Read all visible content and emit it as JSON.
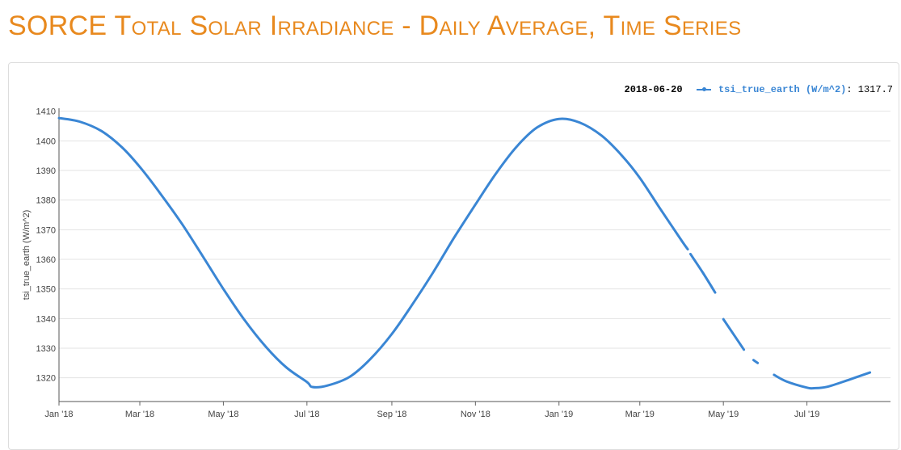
{
  "page": {
    "title": "SORCE Total Solar Irradiance - Daily Average, Time Series",
    "accent_color": "#e8891e"
  },
  "legend": {
    "date": "2018-06-20",
    "series_label": "tsi_true_earth (W/m^2)",
    "value": "1317.7"
  },
  "chart_data": {
    "type": "line",
    "title": "SORCE Total Solar Irradiance - Daily Average, Time Series",
    "xlabel": "",
    "ylabel": "tsi_true_earth (W/m^2)",
    "ylim": [
      1312,
      1411
    ],
    "xlim": [
      "2018-01-01",
      "2019-08-31"
    ],
    "y_ticks": [
      1320,
      1330,
      1340,
      1350,
      1360,
      1370,
      1380,
      1390,
      1400,
      1410
    ],
    "x_ticks": [
      {
        "date": "2018-01-01",
        "label": "Jan '18"
      },
      {
        "date": "2018-03-01",
        "label": "Mar '18"
      },
      {
        "date": "2018-05-01",
        "label": "May '18"
      },
      {
        "date": "2018-07-01",
        "label": "Jul '18"
      },
      {
        "date": "2018-09-01",
        "label": "Sep '18"
      },
      {
        "date": "2018-11-01",
        "label": "Nov '18"
      },
      {
        "date": "2019-01-01",
        "label": "Jan '19"
      },
      {
        "date": "2019-03-01",
        "label": "Mar '19"
      },
      {
        "date": "2019-05-01",
        "label": "May '19"
      },
      {
        "date": "2019-07-01",
        "label": "Jul '19"
      }
    ],
    "grid": true,
    "legend_position": "top-right",
    "series": [
      {
        "name": "tsi_true_earth (W/m^2)",
        "color": "#3a86d4",
        "points": [
          [
            "2018-01-01",
            1407.7
          ],
          [
            "2018-01-16",
            1406.5
          ],
          [
            "2018-02-01",
            1403.3
          ],
          [
            "2018-02-16",
            1397.8
          ],
          [
            "2018-03-01",
            1391.2
          ],
          [
            "2018-03-16",
            1382.2
          ],
          [
            "2018-04-01",
            1371.8
          ],
          [
            "2018-04-16",
            1361.0
          ],
          [
            "2018-05-01",
            1350.0
          ],
          [
            "2018-05-16",
            1339.8
          ],
          [
            "2018-06-01",
            1330.5
          ],
          [
            "2018-06-16",
            1323.5
          ],
          [
            "2018-07-01",
            1318.6
          ],
          [
            "2018-07-05",
            1316.9
          ],
          [
            "2018-07-16",
            1317.4
          ],
          [
            "2018-08-01",
            1320.3
          ],
          [
            "2018-08-16",
            1326.2
          ],
          [
            "2018-09-01",
            1334.8
          ],
          [
            "2018-09-16",
            1344.8
          ],
          [
            "2018-10-01",
            1355.5
          ],
          [
            "2018-10-16",
            1367.0
          ],
          [
            "2018-11-01",
            1378.5
          ],
          [
            "2018-11-16",
            1389.0
          ],
          [
            "2018-12-01",
            1398.0
          ],
          [
            "2018-12-16",
            1404.5
          ],
          [
            "2019-01-01",
            1407.4
          ],
          [
            "2019-01-16",
            1406.2
          ],
          [
            "2019-02-01",
            1401.8
          ],
          [
            "2019-02-16",
            1395.0
          ],
          [
            "2019-03-01",
            1387.5
          ],
          [
            "2019-03-16",
            1377.0
          ],
          [
            "2019-04-01",
            1366.0
          ],
          [
            "2019-04-05",
            1363.4
          ],
          null,
          [
            "2019-04-07",
            1361.8
          ],
          [
            "2019-04-16",
            1355.5
          ],
          [
            "2019-04-25",
            1348.8
          ],
          null,
          [
            "2019-05-01",
            1339.8
          ],
          [
            "2019-05-16",
            1329.5
          ],
          null,
          [
            "2019-05-23",
            1326.0
          ],
          [
            "2019-05-26",
            1325.0
          ],
          null,
          [
            "2019-06-07",
            1321.0
          ],
          [
            "2019-06-16",
            1318.8
          ],
          [
            "2019-07-01",
            1316.7
          ],
          [
            "2019-07-06",
            1316.5
          ],
          [
            "2019-07-16",
            1317.0
          ],
          [
            "2019-08-01",
            1319.4
          ],
          [
            "2019-08-16",
            1321.8
          ]
        ]
      }
    ]
  }
}
